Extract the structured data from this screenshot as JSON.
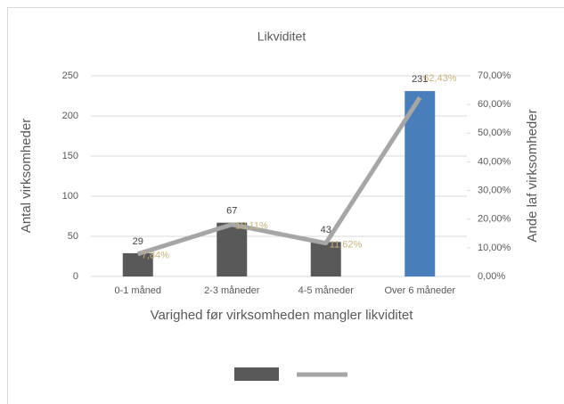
{
  "chart_data": {
    "type": "bar_line",
    "title": "Likviditet",
    "x_label": "Varighed  før virksomheden mangler likviditet",
    "y_label": "Antal virksomheder",
    "y2_label": "Ande laf virksomheder",
    "categories": [
      "0-1 måned",
      "2-3 måneder",
      "4-5 måneder",
      "Over 6 måneder"
    ],
    "ylim": [
      0,
      250
    ],
    "yticks": [
      0,
      50,
      100,
      150,
      200,
      250
    ],
    "y2lim": [
      0,
      70
    ],
    "y2ticks": [
      {
        "value": 0,
        "label": "0,00%"
      },
      {
        "value": 10,
        "label": "10,00%"
      },
      {
        "value": 20,
        "label": "20,00%"
      },
      {
        "value": 30,
        "label": "30,00%"
      },
      {
        "value": 40,
        "label": "40,00%"
      },
      {
        "value": 50,
        "label": "50,00%"
      },
      {
        "value": 60,
        "label": "60,00%"
      },
      {
        "value": 70,
        "label": "70,00%"
      }
    ],
    "grid": true,
    "legend": "bottom",
    "series": [
      {
        "type": "bar",
        "values": [
          29,
          67,
          43,
          231
        ],
        "colors": [
          "#595959",
          "#595959",
          "#595959",
          "#4a7ebb"
        ],
        "color": "#595959"
      },
      {
        "type": "line",
        "axis": "y2",
        "values": [
          7.84,
          18.11,
          11.62,
          62.43
        ],
        "value_labels": [
          "7,84%",
          "18,11%",
          "11,62%",
          "62,43%"
        ],
        "color": "#a6a6a6",
        "label_color": "#c9b27c"
      }
    ]
  }
}
